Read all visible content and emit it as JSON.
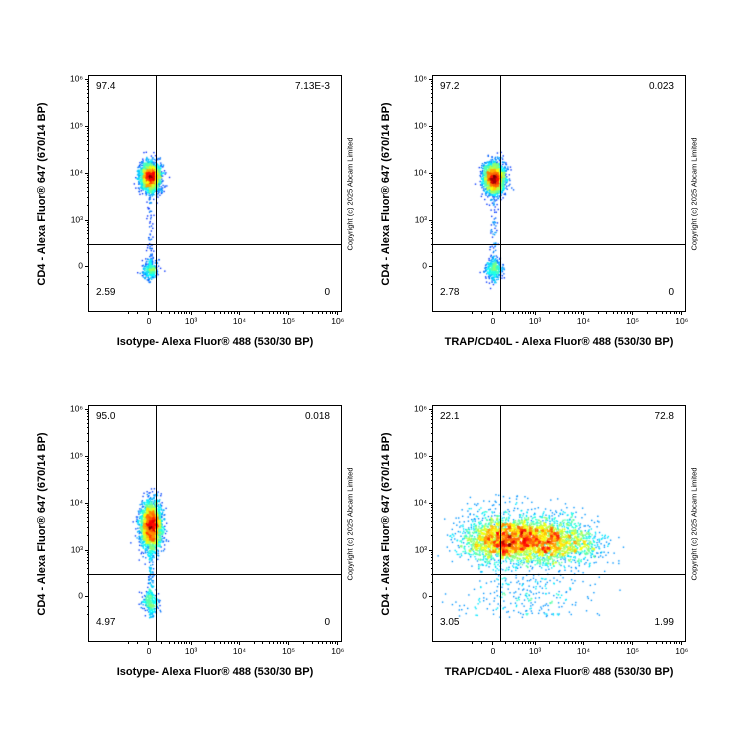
{
  "axes": {
    "x_major_ticks": [
      {
        "label": "0",
        "pos": 0.238
      },
      {
        "label": "10³",
        "pos": 0.405
      },
      {
        "label": "10⁴",
        "pos": 0.597
      },
      {
        "label": "10⁵",
        "pos": 0.792
      },
      {
        "label": "10⁶",
        "pos": 0.987
      }
    ],
    "y_major_ticks": [
      {
        "label": "0",
        "pos": 0.191
      },
      {
        "label": "10³",
        "pos": 0.387
      },
      {
        "label": "10⁴",
        "pos": 0.587
      },
      {
        "label": "10⁵",
        "pos": 0.787
      },
      {
        "label": "10⁶",
        "pos": 0.987
      }
    ]
  },
  "chart_data": [
    {
      "type": "scatter",
      "panel": "top-left",
      "xlabel": "Isotype- Alexa Fluor® 488 (530/30 BP)",
      "ylabel": "CD4 - Alexa Fluor® 647 (670/14 BP)",
      "copyright": "Copyright (c) 2025 Abcam Limited",
      "quadrant_stats": {
        "upper_left": "97.4",
        "upper_right": "7.13E-3",
        "lower_left": "2.59",
        "lower_right": "0"
      },
      "gate": {
        "x_pos": 0.266,
        "y_pos": 0.285
      },
      "populations": [
        {
          "name": "CD4-positive isotype-negative",
          "shape": "gauss",
          "cx": 0.245,
          "cy": 0.572,
          "sx": 0.02,
          "sy": 0.03,
          "n": 2200
        },
        {
          "name": "CD4-negative cells",
          "shape": "gauss",
          "cx": 0.243,
          "cy": 0.175,
          "sx": 0.017,
          "sy": 0.022,
          "n": 260
        },
        {
          "name": "scatter trail",
          "shape": "band",
          "cx": 0.244,
          "sx": 0.007,
          "y_min": 0.12,
          "y_max": 0.56,
          "n": 90
        }
      ]
    },
    {
      "type": "scatter",
      "panel": "top-right",
      "xlabel": "TRAP/CD40L - Alexa Fluor® 488 (530/30 BP)",
      "ylabel": "CD4 - Alexa Fluor® 647 (670/14 BP)",
      "copyright": "Copyright (c) 2025 Abcam Limited",
      "quadrant_stats": {
        "upper_left": "97.2",
        "upper_right": "0.023",
        "lower_left": "2.78",
        "lower_right": "0"
      },
      "gate": {
        "x_pos": 0.266,
        "y_pos": 0.285
      },
      "populations": [
        {
          "name": "CD4-positive TRAP/CD40L-negative",
          "shape": "gauss",
          "cx": 0.243,
          "cy": 0.565,
          "sx": 0.021,
          "sy": 0.032,
          "n": 2200
        },
        {
          "name": "CD4-negative cells",
          "shape": "gauss",
          "cx": 0.242,
          "cy": 0.175,
          "sx": 0.017,
          "sy": 0.023,
          "n": 290
        },
        {
          "name": "scatter trail",
          "shape": "band",
          "cx": 0.243,
          "sx": 0.007,
          "y_min": 0.12,
          "y_max": 0.55,
          "n": 110
        }
      ]
    },
    {
      "type": "scatter",
      "panel": "bottom-left",
      "xlabel": "Isotype- Alexa Fluor® 488 (530/30 BP)",
      "ylabel": "CD4 - Alexa Fluor® 647 (670/14 BP)",
      "copyright": "Copyright (c) 2025 Abcam Limited",
      "quadrant_stats": {
        "upper_left": "95.0",
        "upper_right": "0.018",
        "lower_left": "4.97",
        "lower_right": "0"
      },
      "gate": {
        "x_pos": 0.266,
        "y_pos": 0.285
      },
      "populations": [
        {
          "name": "activated CD4-positive isotype-negative",
          "shape": "gauss",
          "cx": 0.247,
          "cy": 0.49,
          "sx": 0.021,
          "sy": 0.05,
          "n": 2600
        },
        {
          "name": "CD4-negative cells",
          "shape": "gauss",
          "cx": 0.245,
          "cy": 0.165,
          "sx": 0.017,
          "sy": 0.024,
          "n": 220
        },
        {
          "name": "scatter trail",
          "shape": "band",
          "cx": 0.246,
          "sx": 0.007,
          "y_min": 0.1,
          "y_max": 0.44,
          "n": 150
        }
      ]
    },
    {
      "type": "scatter",
      "panel": "bottom-right",
      "xlabel": "TRAP/CD40L - Alexa Fluor® 488 (530/30 BP)",
      "ylabel": "CD4 - Alexa Fluor® 647 (670/14 BP)",
      "copyright": "Copyright (c) 2025 Abcam Limited",
      "quadrant_stats": {
        "upper_left": "22.1",
        "upper_right": "72.8",
        "lower_left": "3.05",
        "lower_right": "1.99"
      },
      "gate": {
        "x_pos": 0.266,
        "y_pos": 0.285
      },
      "populations": [
        {
          "name": "CD4-positive TRAP/CD40L-dim",
          "shape": "gauss",
          "cx": 0.28,
          "cy": 0.43,
          "sx": 0.08,
          "sy": 0.05,
          "n": 2300
        },
        {
          "name": "CD4-positive TRAP/CD40L-positive",
          "shape": "gauss",
          "cx": 0.46,
          "cy": 0.42,
          "sx": 0.075,
          "sy": 0.05,
          "n": 1700
        },
        {
          "name": "TRAP/CD40L-bright tail",
          "shape": "gauss",
          "cx": 0.6,
          "cy": 0.41,
          "sx": 0.055,
          "sy": 0.045,
          "n": 260
        },
        {
          "name": "below-gate scatter",
          "shape": "band",
          "cx": 0.36,
          "sx": 0.13,
          "y_min": 0.1,
          "y_max": 0.27,
          "n": 240
        },
        {
          "name": "sparse upper scatter",
          "shape": "band",
          "cx": 0.35,
          "sx": 0.11,
          "y_min": 0.5,
          "y_max": 0.62,
          "n": 60
        }
      ]
    }
  ]
}
